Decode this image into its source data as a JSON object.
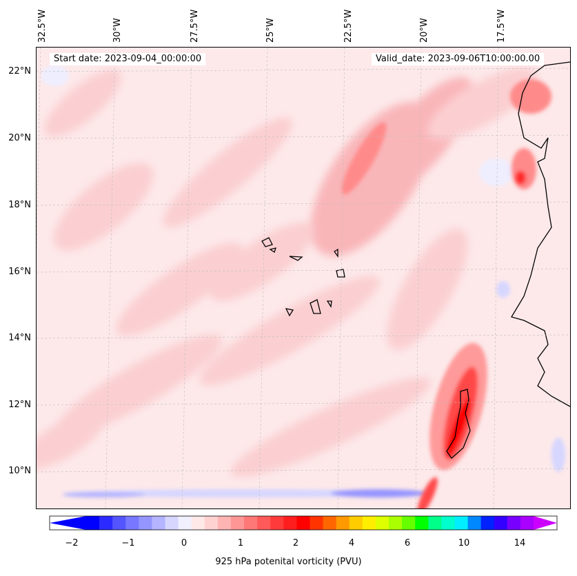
{
  "header": {
    "start_date": "Start date: 2023-09-04_00:00:00",
    "valid_date": "Valid_date: 2023-09-06T10:00:00.00"
  },
  "axes": {
    "lon_labels": [
      "32.5°W",
      "30°W",
      "27.5°W",
      "25°W",
      "22.5°W",
      "20°W",
      "17.5°W"
    ],
    "lat_labels": [
      "22°N",
      "20°N",
      "18°N",
      "16°N",
      "14°N",
      "12°N",
      "10°N"
    ]
  },
  "colorbar": {
    "label": "925 hPa potenital vorticity (PVU)",
    "tick_labels": [
      "−2",
      "−1",
      "0",
      "1",
      "2",
      "4",
      "6",
      "10",
      "14"
    ],
    "colors": [
      "#0000ff",
      "#2b2bff",
      "#5555ff",
      "#7777ff",
      "#9595ff",
      "#b4b4ff",
      "#d6d6ff",
      "#f0f0ff",
      "#ffe8e8",
      "#ffd2d2",
      "#ffb4b4",
      "#ff9696",
      "#ff7878",
      "#ff5a5a",
      "#ff3a3a",
      "#ff1e1e",
      "#ff0000",
      "#ff3300",
      "#ff6600",
      "#ff9900",
      "#ffcc00",
      "#ffee00",
      "#ddff00",
      "#aaff00",
      "#66ff00",
      "#00ff00",
      "#00ff88",
      "#00ffcc",
      "#00eeff",
      "#0088ff",
      "#0022ff",
      "#3300ff",
      "#7700ff",
      "#aa00ff"
    ],
    "under_color": "#0000ff",
    "over_color": "#cc00ff"
  }
}
